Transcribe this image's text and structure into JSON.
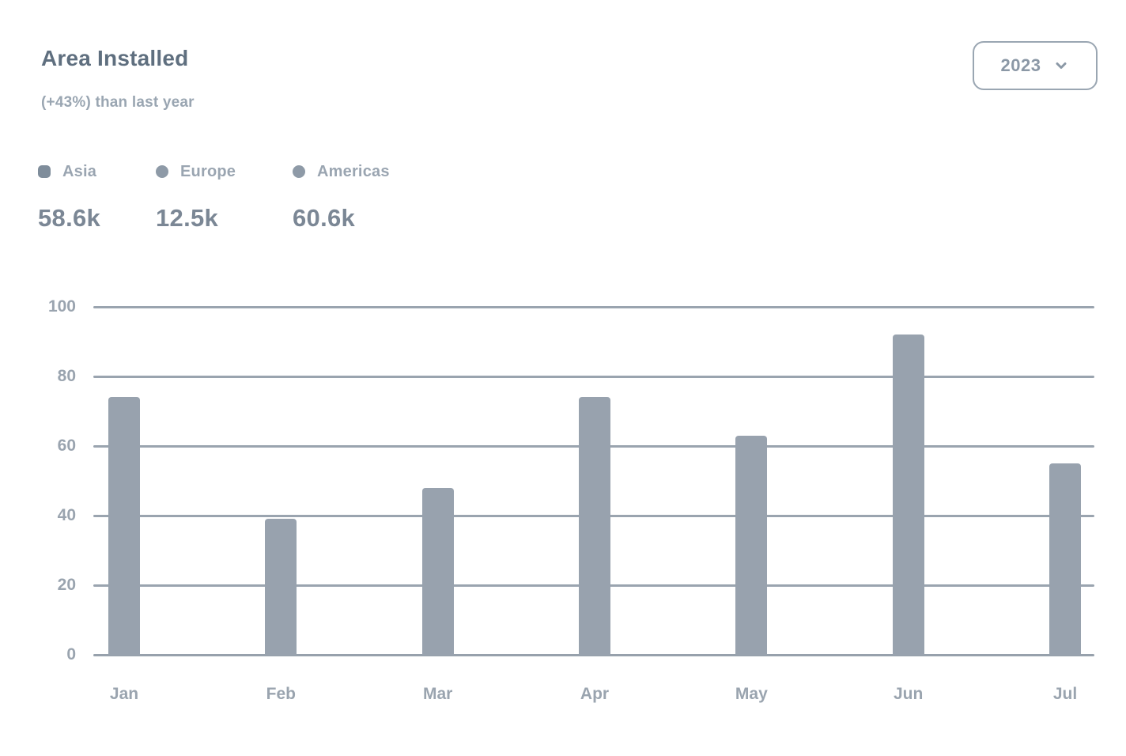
{
  "header": {
    "title": "Area Installed",
    "subtitle": "(+43%) than last year"
  },
  "year_selector": {
    "value": "2023",
    "icon": "chevron-down-icon"
  },
  "legend": {
    "items": [
      {
        "label": "Asia",
        "value": "58.6k",
        "marker_color": "#7f8d9b"
      },
      {
        "label": "Europe",
        "value": "12.5k",
        "marker_color": "#8e9aa7"
      },
      {
        "label": "Americas",
        "value": "60.6k",
        "marker_color": "#8e9aa7"
      }
    ]
  },
  "chart_data": {
    "type": "bar",
    "title": "Area Installed",
    "categories": [
      "Jan",
      "Feb",
      "Mar",
      "Apr",
      "May",
      "Jun",
      "Jul"
    ],
    "values": [
      74,
      39,
      48,
      74,
      63,
      92,
      55
    ],
    "xlabel": "",
    "ylabel": "",
    "ylim": [
      0,
      100
    ],
    "yticks": [
      0,
      20,
      40,
      60,
      80,
      100
    ],
    "grid": true,
    "legend_position": "top-left",
    "bar_color": "#98a2ae",
    "grid_color": "#9aa4af"
  }
}
